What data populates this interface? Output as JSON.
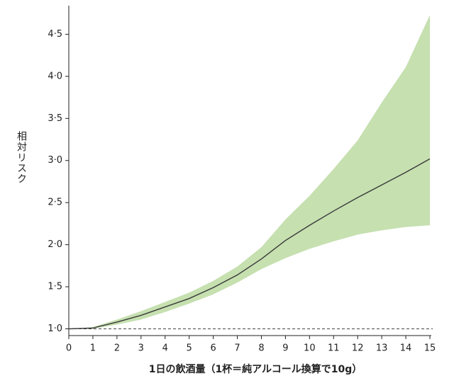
{
  "chart_data": {
    "type": "line",
    "x": [
      0,
      1,
      2,
      3,
      4,
      5,
      6,
      7,
      8,
      9,
      10,
      11,
      12,
      13,
      14,
      15
    ],
    "series": [
      {
        "color": "#3a3a3a",
        "band_color": "#c6e0b0",
        "values": [
          1.0,
          1.01,
          1.08,
          1.16,
          1.26,
          1.36,
          1.49,
          1.64,
          1.83,
          2.05,
          2.23,
          2.4,
          2.56,
          2.71,
          2.86,
          3.02
        ],
        "lower": [
          1.0,
          1.0,
          1.05,
          1.11,
          1.2,
          1.3,
          1.41,
          1.55,
          1.71,
          1.84,
          1.95,
          2.04,
          2.12,
          2.17,
          2.21,
          2.23
        ],
        "upper": [
          1.0,
          1.02,
          1.11,
          1.21,
          1.32,
          1.43,
          1.57,
          1.74,
          1.97,
          2.3,
          2.58,
          2.9,
          3.24,
          3.69,
          4.11,
          4.73
        ]
      }
    ],
    "reference_line": 1,
    "xlim": [
      0,
      15
    ],
    "xticks": [
      0,
      1,
      2,
      3,
      4,
      5,
      6,
      7,
      8,
      9,
      10,
      11,
      12,
      13,
      14,
      15
    ],
    "ylim": [
      0.92,
      4.84
    ],
    "yticks": [
      {
        "value": 1,
        "label": "1·0"
      },
      {
        "value": 1.5,
        "label": "1·5"
      },
      {
        "value": 2,
        "label": "2·0"
      },
      {
        "value": 2.5,
        "label": "2·5"
      },
      {
        "value": 3,
        "label": "3·0"
      },
      {
        "value": 3.5,
        "label": "3·5"
      },
      {
        "value": 4,
        "label": "4·0"
      },
      {
        "value": 4.5,
        "label": "4·5"
      }
    ],
    "x_label": "1日の飲酒量（1杯＝純アルコール換算で10g）",
    "y_label": "相対リスク"
  }
}
